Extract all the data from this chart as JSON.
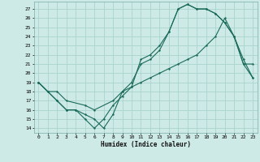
{
  "xlabel": "Humidex (Indice chaleur)",
  "bg_color": "#ceeae6",
  "grid_color": "#aad4ce",
  "line_color": "#1a6b5a",
  "xlim": [
    -0.5,
    23.5
  ],
  "ylim": [
    13.5,
    27.8
  ],
  "xticks": [
    0,
    1,
    2,
    3,
    4,
    5,
    6,
    7,
    8,
    9,
    10,
    11,
    12,
    13,
    14,
    15,
    16,
    17,
    18,
    19,
    20,
    21,
    22,
    23
  ],
  "yticks": [
    14,
    15,
    16,
    17,
    18,
    19,
    20,
    21,
    22,
    23,
    24,
    25,
    26,
    27
  ],
  "line1_x": [
    0,
    1,
    2,
    3,
    4,
    5,
    6,
    7,
    8,
    9,
    10,
    11,
    12,
    13,
    14,
    15,
    16,
    17,
    18,
    19,
    20,
    21,
    22,
    23
  ],
  "line1_y": [
    19,
    18,
    17,
    16,
    16,
    15,
    14,
    15,
    16.5,
    17.5,
    18.5,
    21.5,
    22,
    23,
    24.5,
    27,
    27.5,
    27,
    27,
    26.5,
    25.5,
    24,
    21,
    21
  ],
  "line2_x": [
    0,
    2,
    3,
    4,
    5,
    6,
    7,
    8,
    9,
    10,
    11,
    12,
    13,
    14,
    15,
    16,
    17,
    18,
    19,
    20,
    21,
    22,
    23
  ],
  "line2_y": [
    19,
    17,
    16,
    16,
    15.5,
    15,
    14,
    15.5,
    18,
    19,
    21,
    21.5,
    22.5,
    24.5,
    27,
    27.5,
    27,
    27,
    26.5,
    25.5,
    24,
    21,
    19.5
  ],
  "line3_x": [
    0,
    1,
    2,
    3,
    5,
    6,
    8,
    9,
    10,
    11,
    12,
    13,
    14,
    15,
    16,
    17,
    18,
    19,
    20,
    21,
    22,
    23
  ],
  "line3_y": [
    19,
    18,
    18,
    17,
    16.5,
    16,
    17,
    18,
    18.5,
    19,
    19.5,
    20,
    20.5,
    21,
    21.5,
    22,
    23,
    24,
    26,
    24,
    21.5,
    19.5
  ]
}
